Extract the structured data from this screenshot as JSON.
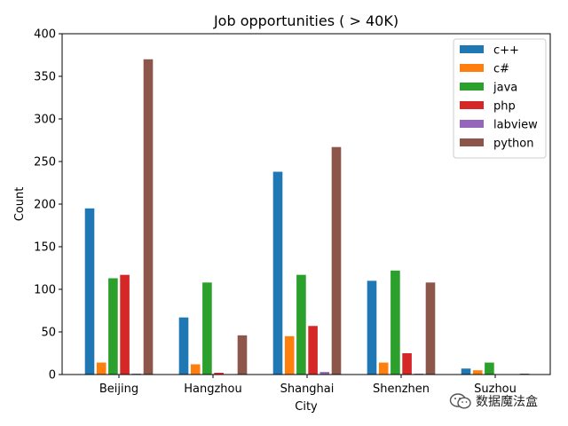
{
  "chart_data": {
    "type": "bar",
    "title": "Job opportunities ( > 40K)",
    "xlabel": "City",
    "ylabel": "Count",
    "ylim": [
      0,
      400
    ],
    "yticks": [
      0,
      50,
      100,
      150,
      200,
      250,
      300,
      350,
      400
    ],
    "categories": [
      "Beijing",
      "Hangzhou",
      "Shanghai",
      "Shenzhen",
      "Suzhou"
    ],
    "series": [
      {
        "name": "c++",
        "color": "#1f77b4",
        "values": [
          195,
          67,
          238,
          110,
          7
        ]
      },
      {
        "name": "c#",
        "color": "#ff7f0e",
        "values": [
          14,
          12,
          45,
          14,
          5
        ]
      },
      {
        "name": "java",
        "color": "#2ca02c",
        "values": [
          113,
          108,
          117,
          122,
          14
        ]
      },
      {
        "name": "php",
        "color": "#d62728",
        "values": [
          117,
          2,
          57,
          25,
          0
        ]
      },
      {
        "name": "labview",
        "color": "#9467bd",
        "values": [
          1,
          0,
          3,
          1,
          0
        ]
      },
      {
        "name": "python",
        "color": "#8c564b",
        "values": [
          370,
          46,
          267,
          108,
          1
        ]
      }
    ],
    "grid": false,
    "legend_position": "top-right"
  },
  "watermark": {
    "text": "数据魔法盒",
    "icon": "wechat-icon"
  }
}
